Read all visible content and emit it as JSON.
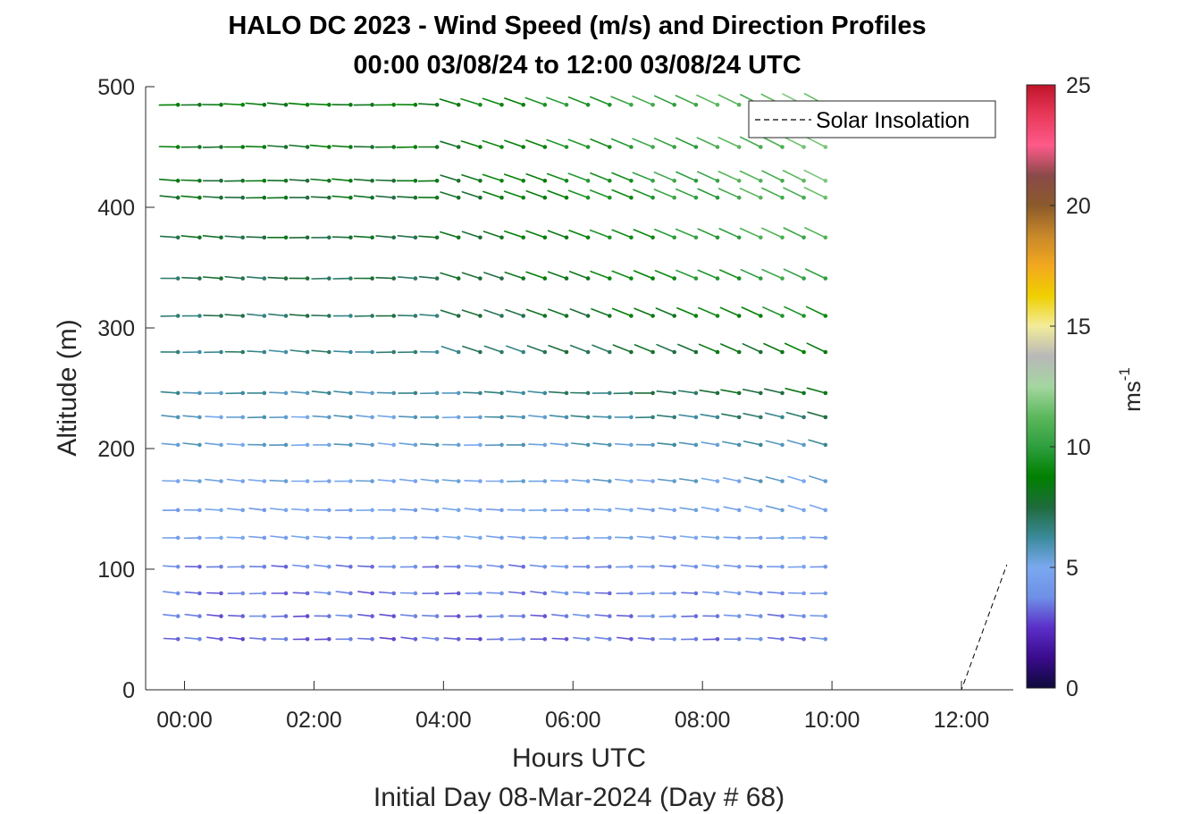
{
  "chart_data": {
    "type": "wind-barb-profile",
    "title": "HALO DC 2023 - Wind Speed (m/s) and Direction Profiles",
    "subtitle": "00:00 03/08/24 to 12:00 03/08/24  UTC",
    "xlabel": "Hours UTC",
    "xlabel2": "Initial Day 08-Mar-2024 (Day # 68)",
    "ylabel": "Altitude (m)",
    "colorbar_label": "ms",
    "colorbar_label_exp": "-1",
    "x_tick_labels": [
      "00:00",
      "02:00",
      "04:00",
      "06:00",
      "08:00",
      "10:00",
      "12:00"
    ],
    "x_tick_hours": [
      0,
      2,
      4,
      6,
      8,
      10,
      12
    ],
    "xlim": [
      -0.6,
      12.8
    ],
    "ylim": [
      0,
      500
    ],
    "y_ticks": [
      0,
      100,
      200,
      300,
      400,
      500
    ],
    "y_tick_labels": [
      "0",
      "100",
      "200",
      "300",
      "400",
      "500"
    ],
    "clim": [
      0,
      25
    ],
    "colorbar_ticks": [
      0,
      5,
      10,
      15,
      20,
      25
    ],
    "colorbar_tick_labels": [
      "0",
      "5",
      "10",
      "15",
      "20",
      "25"
    ],
    "colormap": [
      "#0d0a3a",
      "#3a0b8c",
      "#5b2ec8",
      "#6e8fe6",
      "#7aa9f0",
      "#3a8a9a",
      "#1f6b3c",
      "#008000",
      "#2e9e3e",
      "#5cb85c",
      "#a4d6a0",
      "#b8b8b8",
      "#f2ec9a",
      "#f0d000",
      "#f2a81e",
      "#c8882a",
      "#8b5a2b",
      "#8a4a4a",
      "#ff5a8a",
      "#e8395a",
      "#c0142a"
    ],
    "legend": {
      "label": "Solar Insolation",
      "position": "top-right"
    },
    "time_start_hour": -0.1,
    "time_end_hour": 9.75,
    "time_step_hour": 0.3333,
    "altitudes": [
      42,
      61,
      80,
      102,
      126,
      149,
      173,
      203,
      226,
      246,
      280,
      310,
      341,
      375,
      408,
      422,
      450,
      485
    ],
    "speed_profiles": {
      "altitudes_m": [
        42,
        61,
        80,
        102,
        126,
        149,
        173,
        203,
        226,
        246,
        280,
        310,
        341,
        375,
        408,
        422,
        450,
        485
      ],
      "early_speed_ms": [
        3.2,
        3.3,
        3.4,
        3.6,
        4.7,
        4.6,
        5.0,
        5.4,
        5.5,
        6.0,
        6.5,
        7.0,
        7.3,
        7.6,
        7.8,
        8.0,
        8.2,
        8.5
      ],
      "late_speed_ms": [
        3.6,
        3.8,
        4.0,
        4.3,
        4.8,
        5.0,
        5.5,
        6.0,
        7.0,
        8.0,
        8.5,
        9.5,
        10.5,
        11.0,
        11.2,
        11.4,
        11.5,
        11.6
      ],
      "direction_note": "westerly flow, veering to north-westerly aloft after 04:00"
    },
    "solar_insolation": {
      "hours": [
        -0.6,
        12.0,
        12.1,
        12.3,
        12.5,
        12.7
      ],
      "relative": [
        0,
        0,
        0.1,
        0.3,
        0.5,
        0.7
      ]
    }
  }
}
